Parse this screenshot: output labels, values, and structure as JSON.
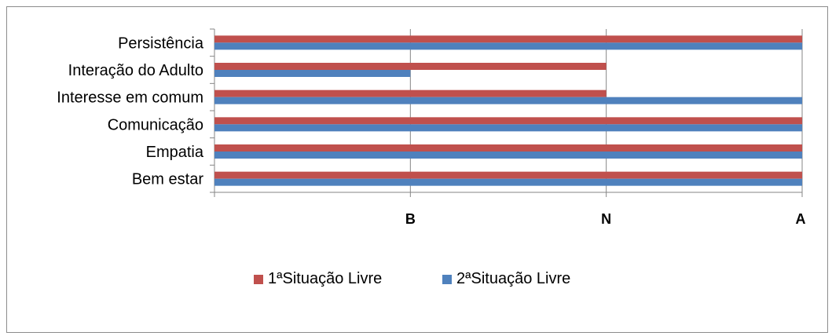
{
  "chart_data": {
    "type": "bar",
    "orientation": "horizontal",
    "categories": [
      "Bem estar",
      "Empatia",
      "Comunicação",
      "Interesse em comum",
      "Interação do Adulto",
      "Persistência"
    ],
    "x_ticks": [
      "B",
      "N",
      "A"
    ],
    "x_values": [
      1,
      2,
      3
    ],
    "xlim": [
      0,
      3
    ],
    "series": [
      {
        "name": "1ªSituação Livre",
        "color": "#c0504d",
        "values": [
          3,
          3,
          3,
          2,
          2,
          3
        ]
      },
      {
        "name": "2ªSituação Livre",
        "color": "#4f81bd",
        "values": [
          3,
          3,
          3,
          3,
          1,
          3
        ]
      }
    ],
    "grid": "vertical",
    "legend_position": "bottom"
  }
}
